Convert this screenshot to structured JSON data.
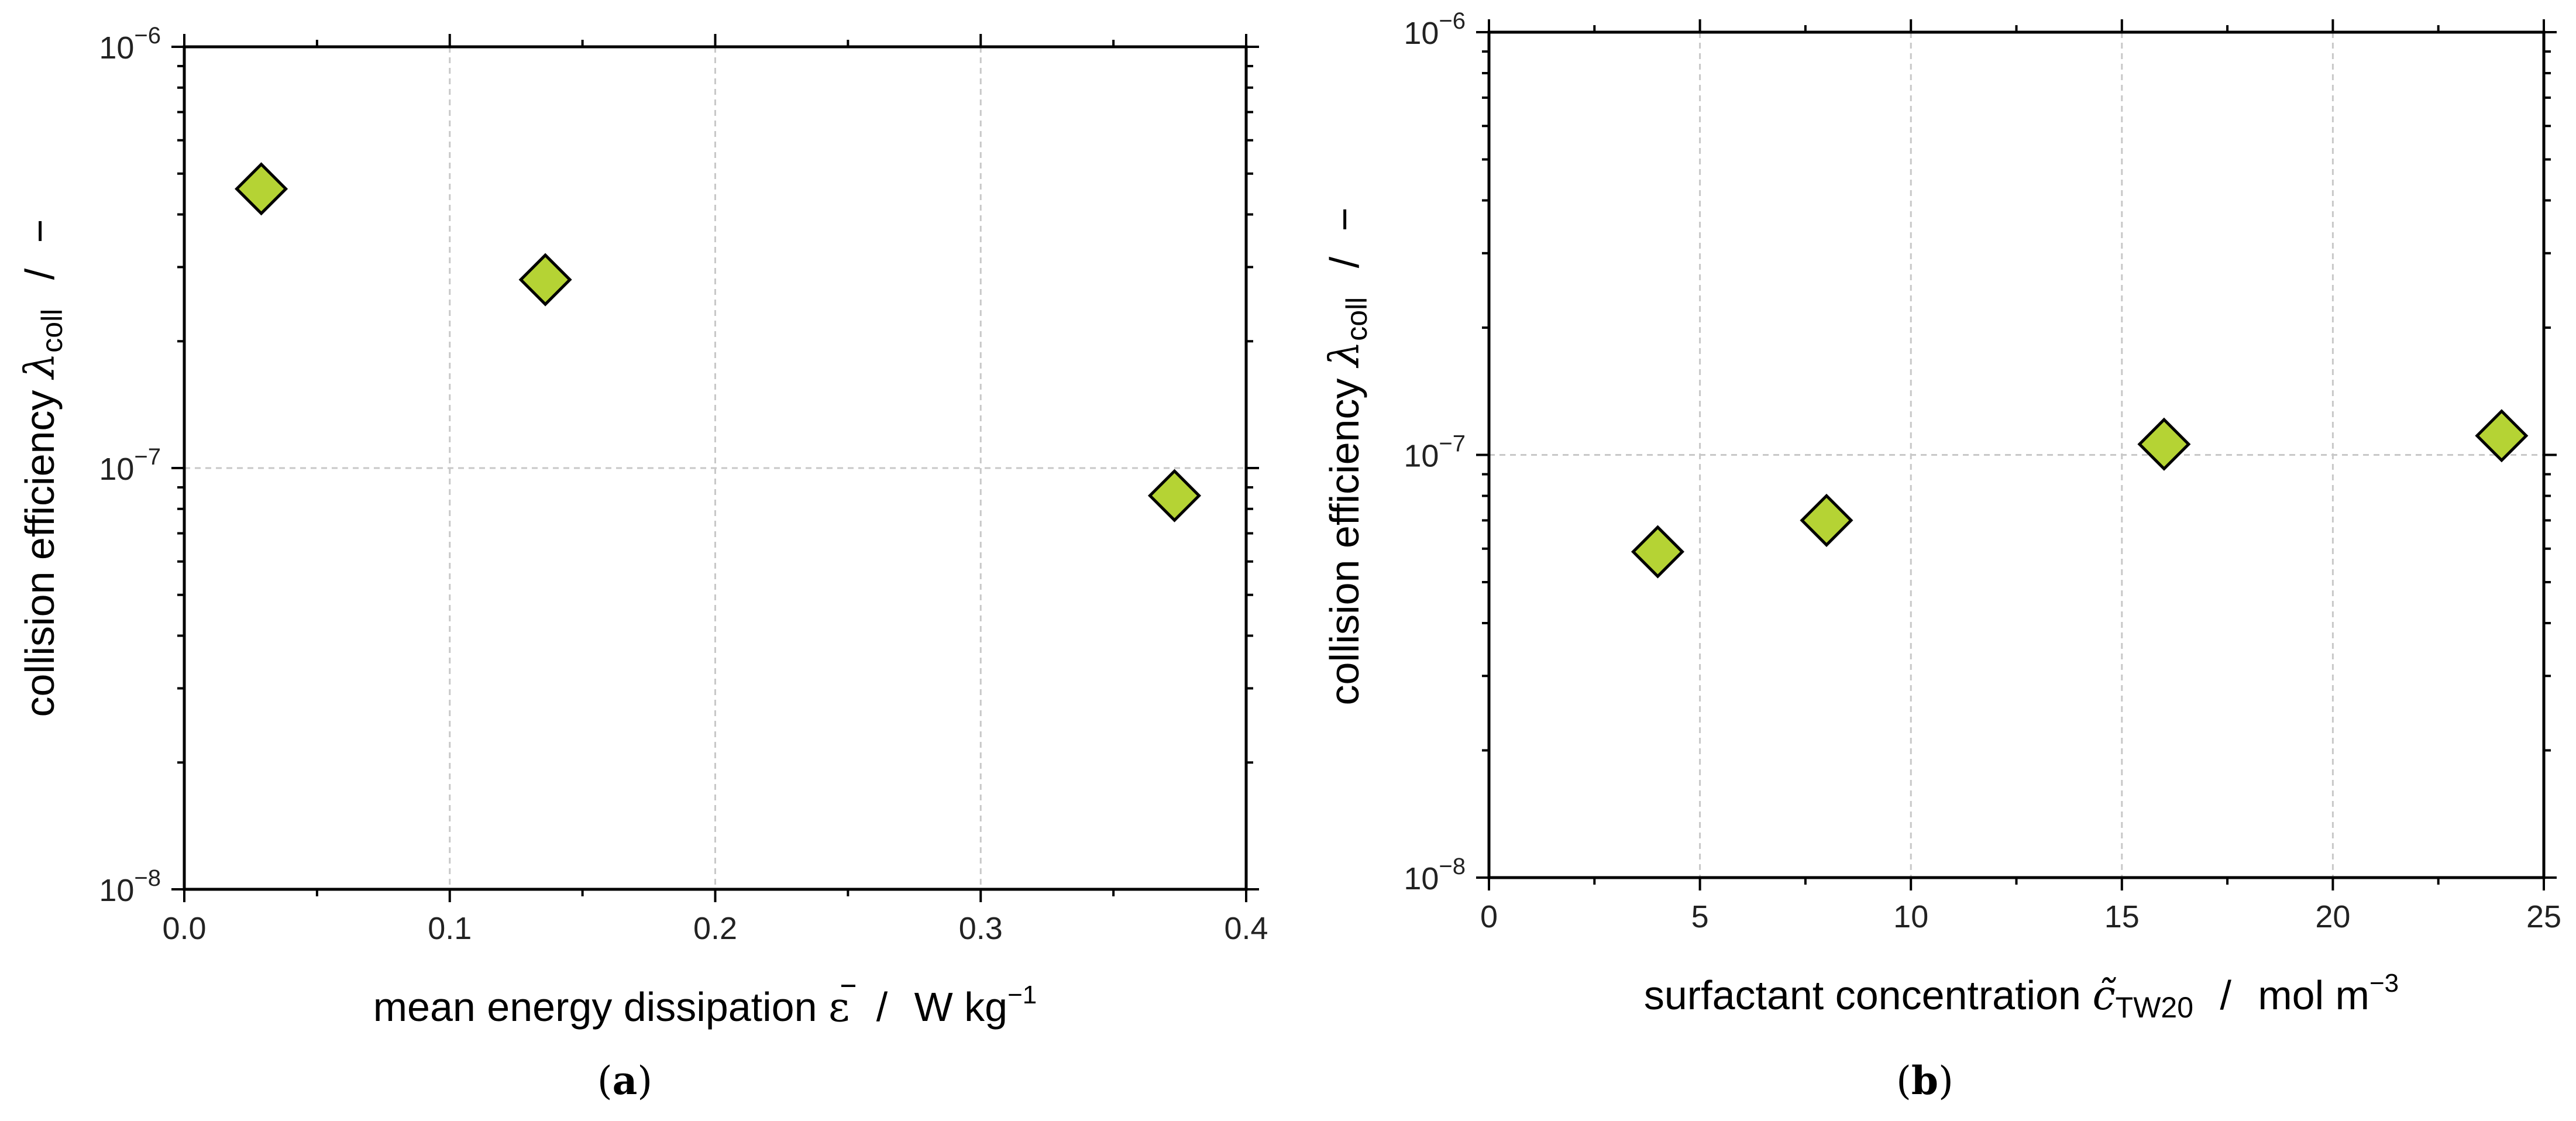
{
  "chart_data": [
    {
      "type": "scatter",
      "panel_label": "(a)",
      "panel_letter": "a",
      "xlabel": "mean energy dissipation ε / W kg⁻¹",
      "xlabel_main": "mean energy dissipation",
      "xlabel_symbol": "ε",
      "xlabel_unit": "W kg",
      "xlabel_unit_sup": "−1",
      "ylabel": "collision efficiency λ_coll / −",
      "ylabel_main": "collision efficiency",
      "ylabel_symbol": "λ",
      "ylabel_sub": "coll",
      "ylabel_unit": "−",
      "xlim": [
        0.0,
        0.4
      ],
      "ylim": [
        1e-08,
        1e-06
      ],
      "yscale": "log",
      "grid": true,
      "xticks": [
        "0.0",
        "0.1",
        "0.2",
        "0.3",
        "0.4"
      ],
      "yticks": [
        {
          "base": "10",
          "exp": "−8"
        },
        {
          "base": "10",
          "exp": "−7"
        },
        {
          "base": "10",
          "exp": "−6"
        }
      ],
      "x": [
        0.029,
        0.136,
        0.373
      ],
      "y": [
        4.6e-07,
        2.8e-07,
        8.6e-08
      ],
      "marker": "diamond",
      "marker_color": "#b5d334"
    },
    {
      "type": "scatter",
      "panel_label": "(b)",
      "panel_letter": "b",
      "xlabel": "surfactant concentration c̃_TW20 / mol m⁻³",
      "xlabel_main": "surfactant concentration",
      "xlabel_symbol": "c̃",
      "xlabel_sub": "TW20",
      "xlabel_unit": "mol m",
      "xlabel_unit_sup": "−3",
      "ylabel": "collision efficiency λ_coll / −",
      "ylabel_main": "collision efficiency",
      "ylabel_symbol": "λ",
      "ylabel_sub": "coll",
      "ylabel_unit": "−",
      "xlim": [
        0,
        25
      ],
      "ylim": [
        1e-08,
        1e-06
      ],
      "yscale": "log",
      "grid": true,
      "xticks": [
        "0",
        "5",
        "10",
        "15",
        "20",
        "25"
      ],
      "yticks": [
        {
          "base": "10",
          "exp": "−8"
        },
        {
          "base": "10",
          "exp": "−7"
        },
        {
          "base": "10",
          "exp": "−6"
        }
      ],
      "x": [
        4,
        8,
        16,
        24
      ],
      "y": [
        5.9e-08,
        7e-08,
        1.06e-07,
        1.11e-07
      ],
      "marker": "diamond",
      "marker_color": "#b5d334"
    }
  ]
}
